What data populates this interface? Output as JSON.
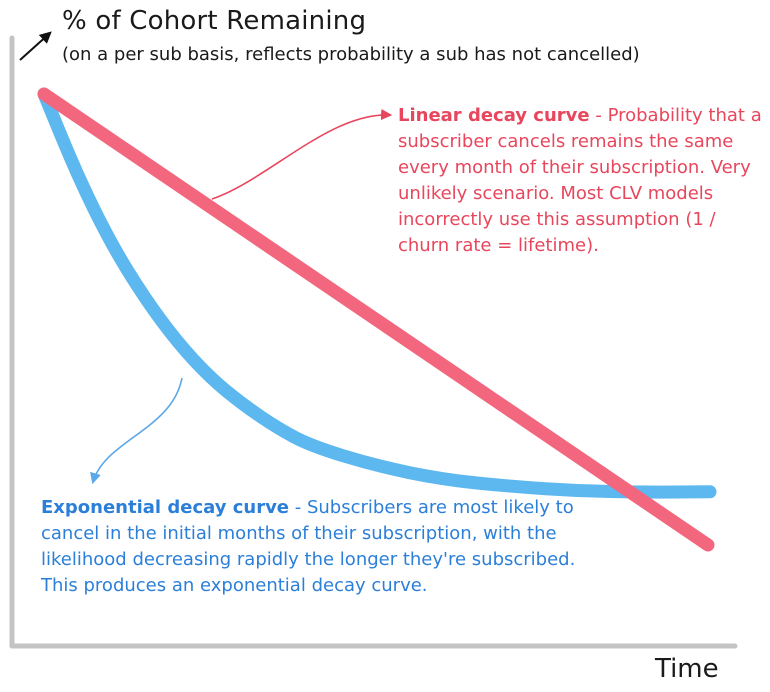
{
  "chart_data": {
    "type": "line",
    "title": "% of Cohort Remaining",
    "subtitle": "(on a per sub basis, reflects probability a sub has not cancelled)",
    "xlabel": "Time",
    "ylabel": "",
    "xlim": [
      0,
      100
    ],
    "ylim": [
      0,
      100
    ],
    "grid": false,
    "legend": "none",
    "series": [
      {
        "key": "linear",
        "color": "#f2667e",
        "x": [
          0,
          100
        ],
        "y": [
          100,
          0
        ]
      },
      {
        "key": "exponential",
        "color": "#5db8ef",
        "x": [
          0,
          5,
          10,
          15,
          20,
          25,
          30,
          35,
          40,
          50,
          60,
          70,
          80,
          90,
          100
        ],
        "y": [
          100,
          82,
          67,
          55,
          45,
          37,
          31,
          26,
          22,
          17.5,
          14.5,
          13,
          12,
          11.7,
          11.8
        ]
      }
    ]
  },
  "annotations": {
    "linear": {
      "heading": "Linear decay curve",
      "body": " - Probability that a subscriber cancels remains the same every month of their subscription. Very unlikely scenario. Most CLV models incorrectly use this assumption (1 / churn rate = lifetime).",
      "color": "#e8465c"
    },
    "exponential": {
      "heading": "Exponential decay curve",
      "body": " - Subscribers are most likely to cancel in the initial months of their subscription, with the likelihood decreasing rapidly the longer they're subscribed. This produces an exponential decay curve.",
      "color": "#2b7fd9"
    }
  },
  "colors": {
    "axis": "#c4c4c4",
    "title_arrow": "#111111"
  }
}
